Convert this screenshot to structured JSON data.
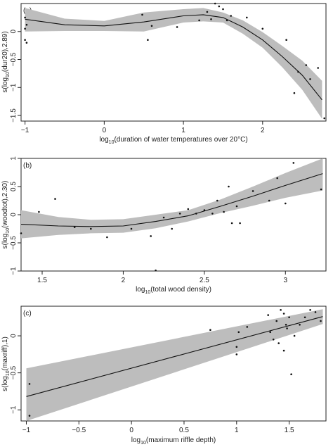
{
  "chart_data": [
    {
      "type": "line",
      "panel_label": "(a)",
      "xlabel_base": "log",
      "xlabel_sub": "10",
      "xlabel_rest": "(duration of water temperatures over 20°C)",
      "ylabel_base": "s(log",
      "ylabel_sub": "10",
      "ylabel_rest": "(dur20),2.89)",
      "xlim": [
        -1.05,
        2.8
      ],
      "ylim": [
        -1.6,
        0.5
      ],
      "xticks": [
        -1,
        0,
        1,
        2
      ],
      "yticks": [
        -1.5,
        -1,
        -0.5,
        0
      ],
      "smooth": {
        "x": [
          -1,
          -0.5,
          0,
          0.5,
          1,
          1.25,
          1.5,
          1.75,
          2,
          2.25,
          2.5,
          2.75
        ],
        "fit": [
          0.22,
          0.12,
          0.1,
          0.17,
          0.28,
          0.3,
          0.25,
          0.08,
          -0.15,
          -0.45,
          -0.78,
          -1.22
        ],
        "upper": [
          0.42,
          0.23,
          0.19,
          0.34,
          0.4,
          0.42,
          0.34,
          0.2,
          -0.01,
          -0.26,
          -0.52,
          -0.88
        ],
        "lower": [
          0.0,
          0.01,
          0.01,
          0.0,
          0.16,
          0.18,
          0.16,
          -0.04,
          -0.29,
          -0.64,
          -1.04,
          -1.56
        ]
      },
      "points": {
        "x": [
          -1,
          -1,
          -1,
          -0.98,
          -0.98,
          0.48,
          0.55,
          0.6,
          0.92,
          1.2,
          1.3,
          1.35,
          1.4,
          1.45,
          1.5,
          1.55,
          1.6,
          1.8,
          2.0,
          2.3,
          2.4,
          2.45,
          2.55,
          2.6,
          2.7,
          2.78
        ],
        "y": [
          0.25,
          0.05,
          -0.15,
          0.12,
          -0.2,
          0.3,
          -0.15,
          0.1,
          0.08,
          0.2,
          0.35,
          0.22,
          0.5,
          0.45,
          0.4,
          0.2,
          0.28,
          0.25,
          0.05,
          -0.15,
          -1.1,
          -0.72,
          -0.6,
          -0.85,
          -0.65,
          -1.55
        ]
      }
    },
    {
      "type": "line",
      "panel_label": "(b)",
      "xlabel_base": "log",
      "xlabel_sub": "10",
      "xlabel_rest": "(total wood density)",
      "ylabel_base": "s(log",
      "ylabel_sub": "10",
      "ylabel_rest": "(woodtot),2.30)",
      "xlim": [
        1.37,
        3.25
      ],
      "ylim": [
        -1.0,
        1.0
      ],
      "xticks": [
        1.5,
        2.0,
        2.5,
        3.0
      ],
      "yticks": [
        -1.0,
        -0.5,
        0.0,
        0.5,
        1.0
      ],
      "smooth": {
        "x": [
          1.37,
          1.6,
          1.8,
          2.0,
          2.2,
          2.4,
          2.6,
          2.8,
          3.0,
          3.23
        ],
        "fit": [
          -0.17,
          -0.2,
          -0.21,
          -0.2,
          -0.12,
          -0.02,
          0.15,
          0.33,
          0.52,
          0.73
        ],
        "upper": [
          0.08,
          -0.04,
          -0.09,
          -0.08,
          0.0,
          0.08,
          0.27,
          0.5,
          0.74,
          1.03
        ],
        "lower": [
          -0.42,
          -0.36,
          -0.33,
          -0.32,
          -0.24,
          -0.12,
          0.03,
          0.16,
          0.3,
          0.43
        ]
      },
      "points": {
        "x": [
          1.37,
          1.48,
          1.58,
          1.7,
          1.8,
          1.9,
          2.05,
          2.17,
          2.2,
          2.25,
          2.3,
          2.35,
          2.4,
          2.45,
          2.5,
          2.55,
          2.58,
          2.62,
          2.65,
          2.67,
          2.7,
          2.72,
          2.8,
          2.9,
          2.95,
          3.0,
          3.05,
          3.22
        ],
        "y": [
          -0.33,
          0.05,
          0.28,
          -0.22,
          -0.25,
          -0.4,
          -0.25,
          -0.38,
          -0.99,
          -0.05,
          -0.25,
          0.02,
          0.1,
          0.02,
          0.08,
          0.02,
          0.25,
          0.05,
          0.5,
          -0.15,
          0.15,
          -0.15,
          0.42,
          0.25,
          0.65,
          0.2,
          0.92,
          0.45
        ]
      }
    },
    {
      "type": "line",
      "panel_label": "(c)",
      "xlabel_base": "log",
      "xlabel_sub": "10",
      "xlabel_rest": "(maximum riffle depth)",
      "ylabel_base": "s(log",
      "ylabel_sub": "10",
      "ylabel_rest": "(maxriff),1)",
      "xlim": [
        -1.05,
        1.85
      ],
      "ylim": [
        -1.15,
        0.4
      ],
      "xticks": [
        -1.0,
        -0.5,
        0.0,
        0.5,
        1.0,
        1.5
      ],
      "yticks": [
        -1.0,
        -0.5,
        0.0
      ],
      "smooth": {
        "x": [
          -1.0,
          1.82
        ],
        "fit": [
          -0.82,
          0.26
        ],
        "upper": [
          -0.44,
          0.36
        ],
        "lower": [
          -1.18,
          0.16
        ]
      },
      "points": {
        "x": [
          -0.97,
          -0.97,
          0.75,
          1.0,
          1.0,
          1.02,
          1.1,
          1.3,
          1.32,
          1.35,
          1.38,
          1.4,
          1.42,
          1.45,
          1.45,
          1.47,
          1.48,
          1.5,
          1.52,
          1.55,
          1.6,
          1.65,
          1.7,
          1.75,
          1.8
        ],
        "y": [
          -0.65,
          -1.08,
          0.08,
          -0.15,
          -0.25,
          0.05,
          0.12,
          0.28,
          0.05,
          -0.05,
          0.2,
          -0.1,
          0.35,
          0.3,
          -0.2,
          0.15,
          0.1,
          0.25,
          -0.52,
          0.0,
          0.15,
          0.25,
          0.35,
          0.32,
          0.2
        ]
      }
    }
  ]
}
